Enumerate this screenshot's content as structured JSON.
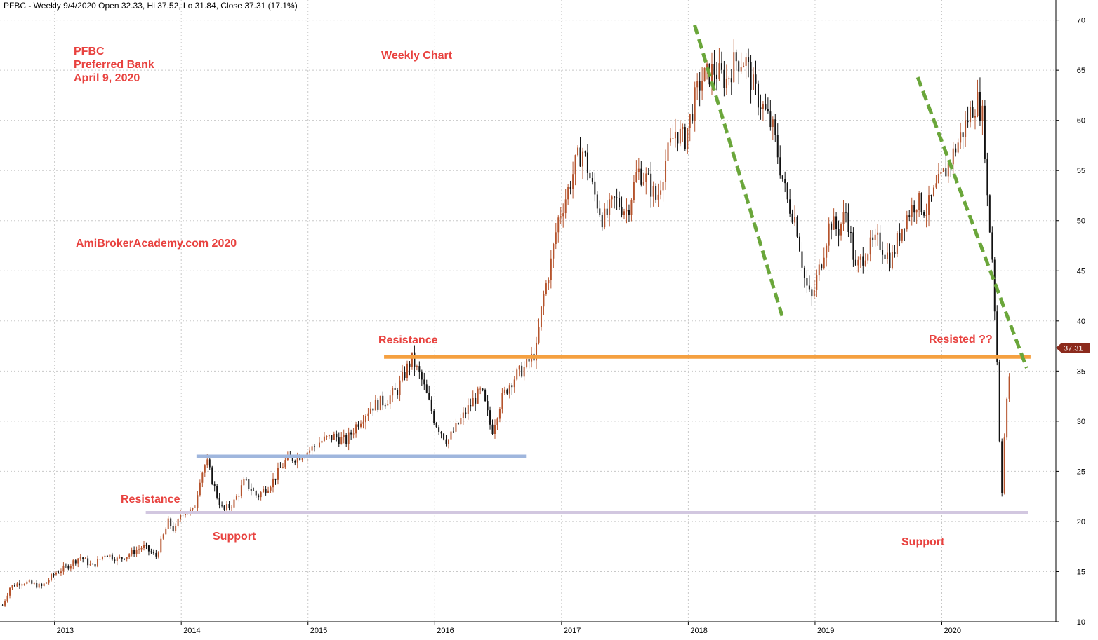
{
  "header": {
    "text": "PFBC - Weekly 9/4/2020 Open 32.33, Hi 37.52, Lo 31.84, Close 37.31 (17.1%)"
  },
  "annotations": {
    "ticker": "PFBC",
    "company": "Preferred Bank",
    "date": "April 9, 2020",
    "chart_label": "Weekly Chart",
    "watermark": "AmiBrokerAcademy.com  2020",
    "resistance_left": "Resistance",
    "resistance_mid": "Resistance",
    "support_left": "Support",
    "support_right": "Support",
    "resisted": "Resisted ??"
  },
  "last_price_label": "37.31",
  "colors": {
    "up_candle": "#b5532c",
    "down_candle": "#111111",
    "annotation_text": "#e8423f",
    "resistance_line": "#f5a040",
    "blue_line": "#9fb6dd",
    "support_line": "#d2c7e0",
    "trend_line": "#6aa63a",
    "price_badge": "#8b2a1c"
  },
  "chart_data": {
    "type": "candlestick",
    "title": "PFBC - Weekly",
    "y_ticks": [
      10,
      15,
      20,
      25,
      30,
      35,
      40,
      45,
      50,
      55,
      60,
      65,
      70
    ],
    "x_ticks": [
      "2013",
      "2014",
      "2015",
      "2016",
      "2017",
      "2018",
      "2019",
      "2020"
    ],
    "ylim": [
      10,
      72
    ],
    "xlim": [
      2012.57,
      2020.9
    ],
    "grid": true,
    "last_close": 37.31,
    "price_path": [
      [
        2012.57,
        11
      ],
      [
        2012.65,
        13.5
      ],
      [
        2012.75,
        14
      ],
      [
        2012.9,
        13.5
      ],
      [
        2013.0,
        14.8
      ],
      [
        2013.1,
        15.5
      ],
      [
        2013.2,
        16.5
      ],
      [
        2013.3,
        15.5
      ],
      [
        2013.4,
        16.8
      ],
      [
        2013.5,
        16.2
      ],
      [
        2013.6,
        16.8
      ],
      [
        2013.7,
        17.5
      ],
      [
        2013.8,
        16.5
      ],
      [
        2013.9,
        20
      ],
      [
        2013.95,
        19
      ],
      [
        2014.0,
        21
      ],
      [
        2014.1,
        21
      ],
      [
        2014.15,
        24.5
      ],
      [
        2014.2,
        26
      ],
      [
        2014.27,
        23
      ],
      [
        2014.33,
        21
      ],
      [
        2014.42,
        22
      ],
      [
        2014.5,
        24
      ],
      [
        2014.6,
        22.5
      ],
      [
        2014.72,
        24
      ],
      [
        2014.82,
        26
      ],
      [
        2014.92,
        26.5
      ],
      [
        2015.0,
        27
      ],
      [
        2015.1,
        28
      ],
      [
        2015.2,
        28.5
      ],
      [
        2015.3,
        28
      ],
      [
        2015.4,
        30
      ],
      [
        2015.5,
        31.5
      ],
      [
        2015.6,
        32
      ],
      [
        2015.7,
        33
      ],
      [
        2015.77,
        35
      ],
      [
        2015.82,
        36.2
      ],
      [
        2015.9,
        34
      ],
      [
        2016.0,
        30
      ],
      [
        2016.1,
        28
      ],
      [
        2016.2,
        30
      ],
      [
        2016.3,
        32
      ],
      [
        2016.37,
        33
      ],
      [
        2016.45,
        29
      ],
      [
        2016.52,
        32
      ],
      [
        2016.6,
        34
      ],
      [
        2016.72,
        35.5
      ],
      [
        2016.8,
        37
      ],
      [
        2016.85,
        42
      ],
      [
        2016.92,
        46
      ],
      [
        2016.97,
        50
      ],
      [
        2017.05,
        53
      ],
      [
        2017.12,
        56
      ],
      [
        2017.17,
        57
      ],
      [
        2017.25,
        53
      ],
      [
        2017.33,
        50
      ],
      [
        2017.42,
        52
      ],
      [
        2017.52,
        51
      ],
      [
        2017.6,
        55
      ],
      [
        2017.68,
        54
      ],
      [
        2017.75,
        52
      ],
      [
        2017.82,
        56
      ],
      [
        2017.9,
        59
      ],
      [
        2017.97,
        58
      ],
      [
        2018.05,
        62
      ],
      [
        2018.1,
        64
      ],
      [
        2018.2,
        65
      ],
      [
        2018.3,
        64
      ],
      [
        2018.37,
        66
      ],
      [
        2018.45,
        66
      ],
      [
        2018.52,
        63
      ],
      [
        2018.6,
        61
      ],
      [
        2018.67,
        59
      ],
      [
        2018.73,
        55
      ],
      [
        2018.78,
        52
      ],
      [
        2018.85,
        50
      ],
      [
        2018.92,
        44
      ],
      [
        2018.97,
        42
      ],
      [
        2019.05,
        46
      ],
      [
        2019.12,
        50
      ],
      [
        2019.18,
        49
      ],
      [
        2019.25,
        51
      ],
      [
        2019.32,
        45
      ],
      [
        2019.4,
        47
      ],
      [
        2019.5,
        48
      ],
      [
        2019.6,
        46
      ],
      [
        2019.7,
        50
      ],
      [
        2019.8,
        52
      ],
      [
        2019.88,
        51
      ],
      [
        2019.95,
        53
      ],
      [
        2020.03,
        55
      ],
      [
        2020.1,
        57
      ],
      [
        2020.17,
        59
      ],
      [
        2020.23,
        61
      ],
      [
        2020.28,
        62
      ],
      [
        2020.33,
        60
      ],
      [
        2020.36,
        52
      ],
      [
        2020.4,
        46
      ],
      [
        2020.44,
        35
      ],
      [
        2020.47,
        22
      ],
      [
        2020.5,
        30
      ],
      [
        2020.55,
        37
      ]
    ],
    "horizontal_lines": [
      {
        "label": "Resistance",
        "y": 36.4,
        "x_range": [
          2015.6,
          2020.7
        ]
      },
      {
        "label": "",
        "y": 26.5,
        "x_range": [
          2014.12,
          2016.72
        ]
      },
      {
        "label": "Support",
        "y": 20.9,
        "x_range": [
          2013.72,
          2020.68
        ]
      }
    ],
    "trend_lines": [
      {
        "from": [
          2018.05,
          69.5
        ],
        "to": [
          2018.74,
          40.5
        ]
      },
      {
        "from": [
          2019.81,
          64.3
        ],
        "to": [
          2020.67,
          35.3
        ]
      }
    ]
  }
}
